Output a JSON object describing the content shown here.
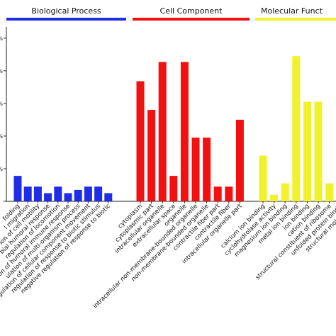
{
  "chart_data": {
    "type": "bar",
    "groups": [
      {
        "name": "Biological Process",
        "color": "#1f2ee6",
        "categories": [
          "folding",
          "l migration",
          "ion of cell motility",
          "bial humoral response",
          "regulation of locomotion",
          "ion of humoral immune response",
          "ulation of multi-organism process",
          "gulation of cellular component movement",
          "regulation of response to biotic stimulus",
          "negative regulation of response to biotic"
        ],
        "values": [
          7.8,
          4.5,
          4.5,
          2.5,
          4.5,
          2.5,
          3.5,
          4.5,
          4.5,
          2.5
        ]
      },
      {
        "name": "Cell Component",
        "color": "#f21010",
        "categories": [
          "cytoplasm",
          "cytoplasmic part",
          "intracellular organelle",
          "extracellular space",
          "organelle",
          "intracellular non-membrane-bounded organelle",
          "non-membrane-bounded organelle",
          "contractile fiber part",
          "contractile fiber",
          "intracellular organelle part"
        ],
        "values": [
          36.8,
          28.0,
          42.7,
          7.8,
          42.7,
          19.5,
          19.5,
          4.5,
          4.5,
          25.0
        ]
      },
      {
        "name": "Molecular Funct",
        "color": "#f2f22a",
        "categories": [
          "calcium ion binding",
          "cyclohydrolase activity",
          "magnesium ion binding",
          "metal ion binding",
          "ion binding",
          "cation binding",
          "structural constituent of ribosome",
          "unfolded protein bindir",
          "structural molecule a"
        ],
        "values": [
          14.0,
          2.0,
          5.5,
          44.5,
          30.5,
          30.5,
          5.5,
          0,
          0
        ]
      }
    ],
    "ylim": [
      0,
      53
    ],
    "yticks": [
      0,
      10,
      20,
      30,
      40,
      50
    ],
    "ytick_labels": [
      "",
      "%",
      "%",
      "%",
      "%",
      "%"
    ],
    "grid": false,
    "legend": "top (colored group bars)"
  }
}
